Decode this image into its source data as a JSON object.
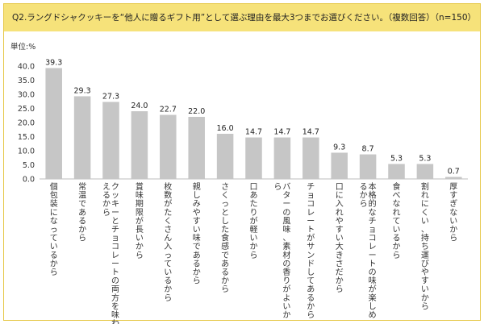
{
  "question": "Q2.ラングドシャクッキーを“他人に贈るギフト用”として選ぶ理由を最大3つまでお選びください。（複数回答）（n=150）",
  "unit": "単位:%",
  "colors": {
    "header_bg": "#f6e27a",
    "border": "#e6c84a",
    "bar": "#c6c6c6"
  },
  "chart_data": {
    "type": "bar",
    "categories": [
      "個包装になっているから",
      "常温であるから",
      "クッキーとチョコレートの両方を味わえるから",
      "賞味期限が長いから",
      "枚数がたくさん入っているから",
      "親しみやすい味であるから",
      "さくっとした食感であるから",
      "口あたりが軽いから",
      "バターの風味、素材の香りがよいから",
      "チョコレートがサンドしてあるから",
      "口に入れやすい大きさだから",
      "本格的なチョコレートの味が楽しめるから",
      "食べなれているから",
      "割れにくい、持ち運びやすいから",
      "厚すぎないから"
    ],
    "category_lines": [
      [
        "個包装になっているから"
      ],
      [
        "常温であるから"
      ],
      [
        "クッキーとチョコレートの両方を味わ",
        "えるから"
      ],
      [
        "賞味期限が長いから"
      ],
      [
        "枚数がたくさん入っているから"
      ],
      [
        "親しみやすい味であるから"
      ],
      [
        "さくっとした食感であるから"
      ],
      [
        "口あたりが軽いから"
      ],
      [
        "バターの風味、素材の香りがよいか",
        "ら"
      ],
      [
        "チョコレートがサンドしてあるから"
      ],
      [
        "口に入れやすい大きさだから"
      ],
      [
        "本格的なチョコレートの味が楽しめ",
        "るから"
      ],
      [
        "食べなれているから"
      ],
      [
        "割れにくい、持ち運びやすいから"
      ],
      [
        "厚すぎないから"
      ]
    ],
    "values": [
      39.3,
      29.3,
      27.3,
      24.0,
      22.7,
      22.0,
      16.0,
      14.7,
      14.7,
      14.7,
      9.3,
      8.7,
      5.3,
      5.3,
      0.7
    ],
    "value_labels": [
      "39.3",
      "29.3",
      "27.3",
      "24.0",
      "22.7",
      "22.0",
      "16.0",
      "14.7",
      "14.7",
      "14.7",
      "9.3",
      "8.7",
      "5.3",
      "5.3",
      "0.7"
    ],
    "ylim": [
      0,
      40
    ],
    "yticks": [
      "0.0",
      "5.0",
      "10.0",
      "15.0",
      "20.0",
      "25.0",
      "30.0",
      "35.0",
      "40.0"
    ],
    "grid": false,
    "legend": "none"
  }
}
